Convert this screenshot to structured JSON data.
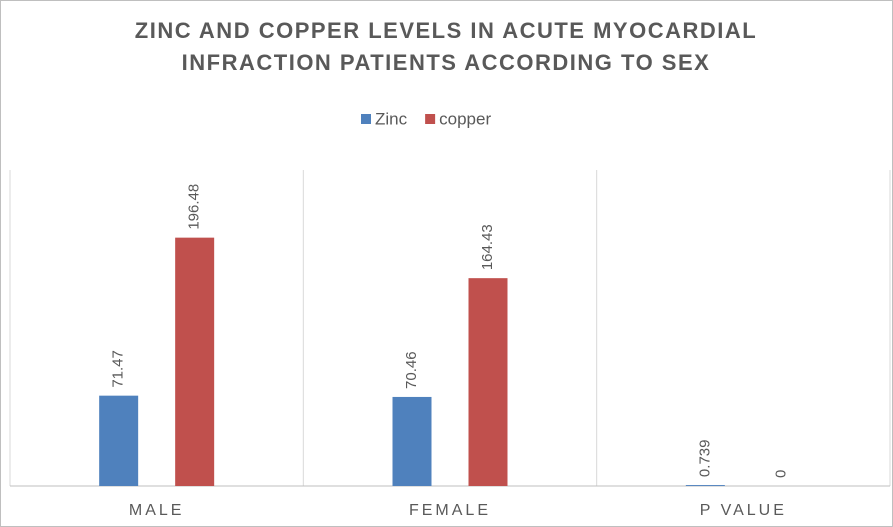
{
  "chart_data": {
    "type": "bar",
    "title": [
      "ZINC AND COPPER LEVELS IN ACUTE MYOCARDIAL",
      "INFRACTION  PATIENTS ACCORDING TO SEX"
    ],
    "categories": [
      "MALE",
      "FEMALE",
      "P VALUE"
    ],
    "series": [
      {
        "name": "Zinc",
        "color": "#4f81bd",
        "values": [
          71.47,
          70.46,
          0.739
        ]
      },
      {
        "name": "copper",
        "color": "#c0504d",
        "values": [
          196.48,
          164.43,
          0
        ]
      }
    ],
    "ylim": [
      0,
      250
    ],
    "legend": "top"
  }
}
